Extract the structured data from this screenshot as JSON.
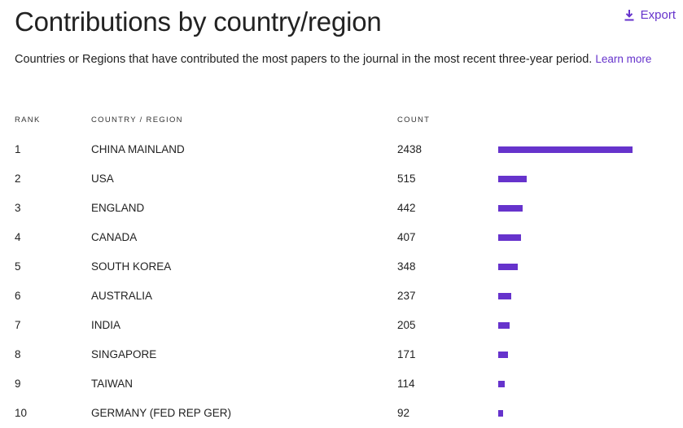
{
  "header": {
    "title": "Contributions by country/region",
    "export_label": "Export",
    "description": "Countries or Regions that have contributed the most papers to the journal in the most recent three-year period.",
    "learn_more": "Learn more"
  },
  "table": {
    "columns": {
      "rank": "RANK",
      "country": "COUNTRY / REGION",
      "count": "COUNT"
    },
    "bar_color": "#6633cc",
    "rows": [
      {
        "rank": "1",
        "country": "CHINA MAINLAND",
        "count": "2438"
      },
      {
        "rank": "2",
        "country": "USA",
        "count": "515"
      },
      {
        "rank": "3",
        "country": "ENGLAND",
        "count": "442"
      },
      {
        "rank": "4",
        "country": "CANADA",
        "count": "407"
      },
      {
        "rank": "5",
        "country": "SOUTH KOREA",
        "count": "348"
      },
      {
        "rank": "6",
        "country": "AUSTRALIA",
        "count": "237"
      },
      {
        "rank": "7",
        "country": "INDIA",
        "count": "205"
      },
      {
        "rank": "8",
        "country": "SINGAPORE",
        "count": "171"
      },
      {
        "rank": "9",
        "country": "TAIWAN",
        "count": "114"
      },
      {
        "rank": "10",
        "country": "GERMANY (FED REP GER)",
        "count": "92"
      }
    ]
  },
  "chart_data": {
    "type": "bar",
    "categories": [
      "CHINA MAINLAND",
      "USA",
      "ENGLAND",
      "CANADA",
      "SOUTH KOREA",
      "AUSTRALIA",
      "INDIA",
      "SINGAPORE",
      "TAIWAN",
      "GERMANY (FED REP GER)"
    ],
    "values": [
      2438,
      515,
      442,
      407,
      348,
      237,
      205,
      171,
      114,
      92
    ]
  }
}
